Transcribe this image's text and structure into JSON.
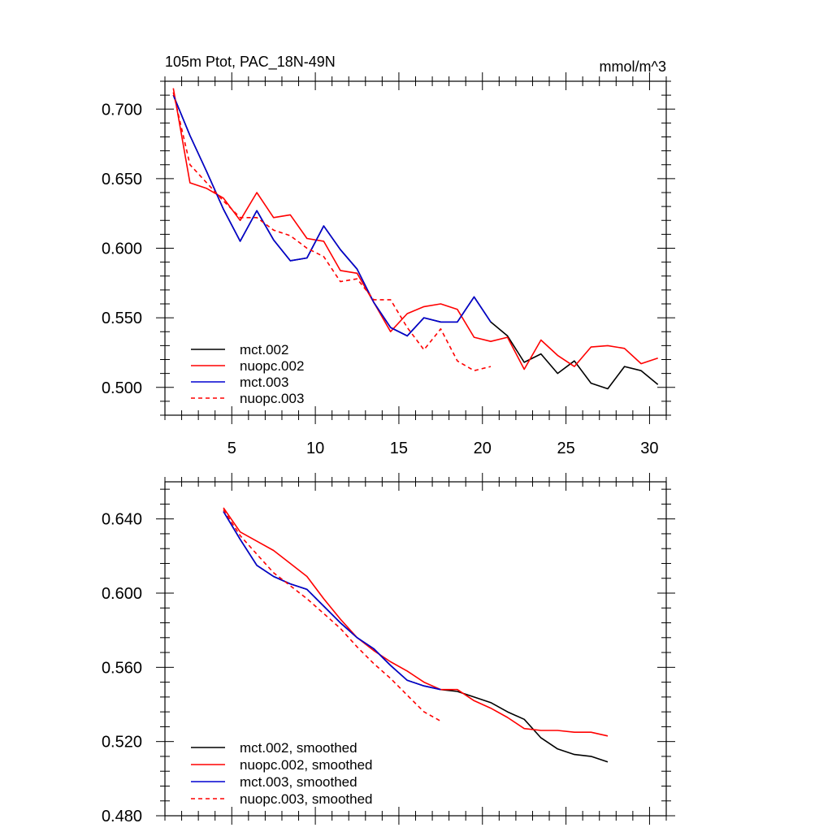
{
  "chart_data": [
    {
      "type": "line",
      "title": "105m Ptot, PAC_18N-49N",
      "units": "mmol/m^3",
      "xlim": [
        1,
        31
      ],
      "ylim": [
        0.48,
        0.72
      ],
      "xticks": [
        5,
        10,
        15,
        20,
        25,
        30
      ],
      "yticks": [
        0.5,
        0.55,
        0.6,
        0.65,
        0.7
      ],
      "ytick_labels": [
        "0.500",
        "0.550",
        "0.600",
        "0.650",
        "0.700"
      ],
      "legend_position": "bottom-left",
      "series": [
        {
          "name": "mct.002",
          "color": "#000000",
          "dash": "solid",
          "x": [
            1.5,
            2.5,
            3.5,
            4.5,
            5.5,
            6.5,
            7.5,
            8.5,
            9.5,
            10.5,
            11.5,
            12.5,
            13.5,
            14.5,
            15.5,
            16.5,
            17.5,
            18.5,
            19.5,
            20.5,
            21.5,
            22.5,
            23.5,
            24.5,
            25.5,
            26.5,
            27.5,
            28.5,
            29.5,
            30.5
          ],
          "values": [
            0.71,
            0.681,
            0.655,
            0.628,
            0.605,
            0.627,
            0.606,
            0.591,
            0.593,
            0.616,
            0.599,
            0.585,
            0.561,
            0.543,
            0.537,
            0.55,
            0.547,
            0.547,
            0.565,
            0.547,
            0.537,
            0.518,
            0.524,
            0.51,
            0.519,
            0.503,
            0.499,
            0.515,
            0.512,
            0.502
          ]
        },
        {
          "name": "nuopc.002",
          "color": "#ff0000",
          "dash": "solid",
          "x": [
            1.5,
            2.5,
            3.5,
            4.5,
            5.5,
            6.5,
            7.5,
            8.5,
            9.5,
            10.5,
            11.5,
            12.5,
            13.5,
            14.5,
            15.5,
            16.5,
            17.5,
            18.5,
            19.5,
            20.5,
            21.5,
            22.5,
            23.5,
            24.5,
            25.5,
            26.5,
            27.5,
            28.5,
            29.5,
            30.5
          ],
          "values": [
            0.715,
            0.647,
            0.643,
            0.636,
            0.62,
            0.64,
            0.622,
            0.624,
            0.607,
            0.605,
            0.584,
            0.582,
            0.561,
            0.54,
            0.553,
            0.558,
            0.56,
            0.556,
            0.536,
            0.533,
            0.536,
            0.513,
            0.534,
            0.523,
            0.515,
            0.529,
            0.53,
            0.528,
            0.517,
            0.521
          ]
        },
        {
          "name": "mct.003",
          "color": "#0000d0",
          "dash": "solid",
          "x": [
            1.5,
            2.5,
            3.5,
            4.5,
            5.5,
            6.5,
            7.5,
            8.5,
            9.5,
            10.5,
            11.5,
            12.5,
            13.5,
            14.5,
            15.5,
            16.5,
            17.5,
            18.5,
            19.5,
            20.5
          ],
          "values": [
            0.71,
            0.681,
            0.655,
            0.628,
            0.605,
            0.627,
            0.606,
            0.591,
            0.593,
            0.616,
            0.599,
            0.585,
            0.561,
            0.543,
            0.537,
            0.55,
            0.547,
            0.547,
            0.565,
            0.547
          ]
        },
        {
          "name": "nuopc.003",
          "color": "#ff0000",
          "dash": "dashed",
          "x": [
            1.5,
            2.5,
            3.5,
            4.5,
            5.5,
            6.5,
            7.5,
            8.5,
            9.5,
            10.5,
            11.5,
            12.5,
            13.5,
            14.5,
            15.5,
            16.5,
            17.5,
            18.5,
            19.5,
            20.5
          ],
          "values": [
            0.712,
            0.66,
            0.647,
            0.634,
            0.622,
            0.622,
            0.613,
            0.609,
            0.6,
            0.594,
            0.576,
            0.578,
            0.563,
            0.563,
            0.543,
            0.527,
            0.542,
            0.519,
            0.512,
            0.515
          ]
        }
      ]
    },
    {
      "type": "line",
      "xlim": [
        1,
        31
      ],
      "ylim": [
        0.48,
        0.66
      ],
      "xticks": [
        5,
        10,
        15,
        20,
        25,
        30
      ],
      "yticks": [
        0.48,
        0.52,
        0.56,
        0.6,
        0.64
      ],
      "ytick_labels": [
        "0.480",
        "0.520",
        "0.560",
        "0.600",
        "0.640"
      ],
      "legend_position": "bottom-left",
      "series": [
        {
          "name": "mct.002, smoothed",
          "color": "#000000",
          "dash": "solid",
          "x": [
            4.5,
            5.5,
            6.5,
            7.5,
            8.5,
            9.5,
            10.5,
            11.5,
            12.5,
            13.5,
            14.5,
            15.5,
            16.5,
            17.5,
            18.5,
            19.5,
            20.5,
            21.5,
            22.5,
            23.5,
            24.5,
            25.5,
            26.5,
            27.5
          ],
          "values": [
            0.644,
            0.629,
            0.615,
            0.609,
            0.605,
            0.602,
            0.593,
            0.584,
            0.576,
            0.57,
            0.561,
            0.553,
            0.55,
            0.548,
            0.547,
            0.544,
            0.541,
            0.536,
            0.532,
            0.522,
            0.516,
            0.513,
            0.512,
            0.509
          ]
        },
        {
          "name": "nuopc.002, smoothed",
          "color": "#ff0000",
          "dash": "solid",
          "x": [
            4.5,
            5.5,
            6.5,
            7.5,
            8.5,
            9.5,
            10.5,
            11.5,
            12.5,
            13.5,
            14.5,
            15.5,
            16.5,
            17.5,
            18.5,
            19.5,
            20.5,
            21.5,
            22.5,
            23.5,
            24.5,
            25.5,
            26.5,
            27.5
          ],
          "values": [
            0.646,
            0.633,
            0.628,
            0.623,
            0.616,
            0.609,
            0.597,
            0.586,
            0.576,
            0.569,
            0.563,
            0.558,
            0.552,
            0.548,
            0.548,
            0.542,
            0.538,
            0.533,
            0.527,
            0.526,
            0.526,
            0.525,
            0.525,
            0.523
          ]
        },
        {
          "name": "mct.003, smoothed",
          "color": "#0000d0",
          "dash": "solid",
          "x": [
            4.5,
            5.5,
            6.5,
            7.5,
            8.5,
            9.5,
            10.5,
            11.5,
            12.5,
            13.5,
            14.5,
            15.5,
            16.5,
            17.5
          ],
          "values": [
            0.644,
            0.629,
            0.615,
            0.609,
            0.605,
            0.602,
            0.593,
            0.584,
            0.576,
            0.57,
            0.561,
            0.553,
            0.55,
            0.548
          ]
        },
        {
          "name": "nuopc.003, smoothed",
          "color": "#ff0000",
          "dash": "dashed",
          "x": [
            4.5,
            5.5,
            6.5,
            7.5,
            8.5,
            9.5,
            10.5,
            11.5,
            12.5,
            13.5,
            14.5,
            15.5,
            16.5,
            17.5
          ],
          "values": [
            0.645,
            0.631,
            0.621,
            0.611,
            0.604,
            0.597,
            0.589,
            0.581,
            0.571,
            0.562,
            0.554,
            0.545,
            0.536,
            0.531
          ]
        }
      ]
    }
  ]
}
